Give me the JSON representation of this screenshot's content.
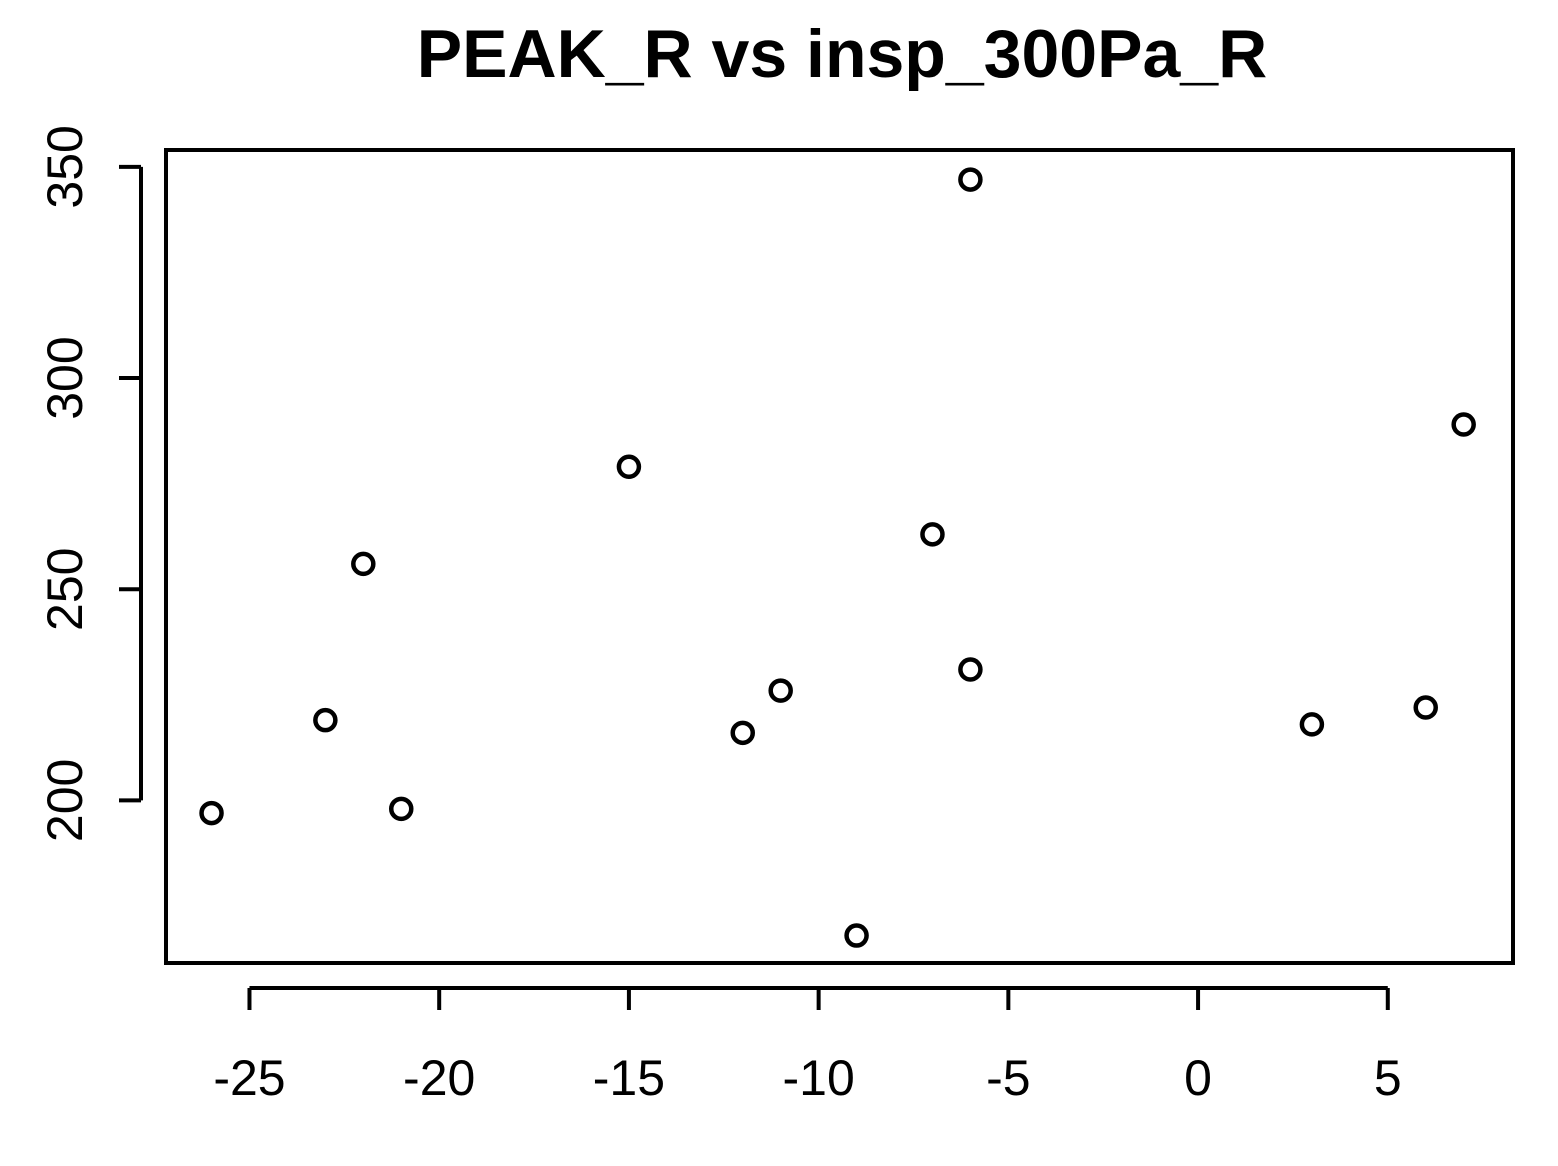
{
  "chart_data": {
    "type": "scatter",
    "title": "PEAK_R vs insp_300Pa_R",
    "xlabel": "",
    "ylabel": "",
    "xlim": [
      -27.2,
      8.3
    ],
    "ylim": [
      161.5,
      354
    ],
    "x_ticks": [
      -25,
      -20,
      -15,
      -10,
      -5,
      0,
      5
    ],
    "x_tick_labels": [
      "-25",
      "-20",
      "-15",
      "-10",
      "-5",
      "0",
      "5"
    ],
    "y_ticks": [
      200,
      250,
      300,
      350
    ],
    "y_tick_labels": [
      "200",
      "250",
      "300",
      "350"
    ],
    "grid": false,
    "legend": "none",
    "marker": "open-circle",
    "colors": {
      "marker": "#000000",
      "axes": "#000000",
      "background": "#ffffff"
    },
    "points": [
      {
        "x": -26,
        "y": 197
      },
      {
        "x": -23,
        "y": 219
      },
      {
        "x": -22,
        "y": 256
      },
      {
        "x": -21,
        "y": 198
      },
      {
        "x": -15,
        "y": 279
      },
      {
        "x": -12,
        "y": 216
      },
      {
        "x": -11,
        "y": 226
      },
      {
        "x": -9,
        "y": 168
      },
      {
        "x": -7,
        "y": 263
      },
      {
        "x": -6,
        "y": 347
      },
      {
        "x": -6,
        "y": 231
      },
      {
        "x": 3,
        "y": 218
      },
      {
        "x": 6,
        "y": 222
      },
      {
        "x": 7,
        "y": 289
      }
    ]
  }
}
